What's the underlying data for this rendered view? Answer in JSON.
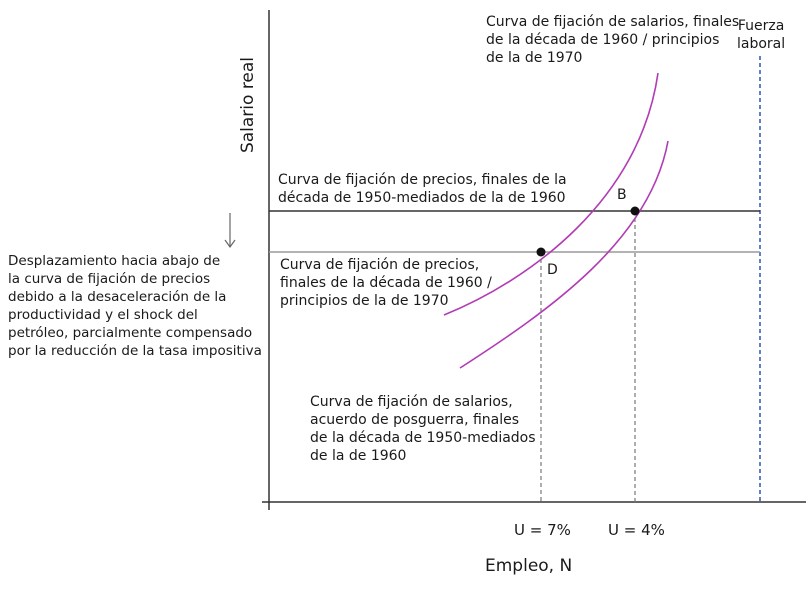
{
  "axes": {
    "y_title": "Salario real",
    "x_title": "Empleo, N"
  },
  "ticks": {
    "u7": "U = 7%",
    "u4": "U = 4%"
  },
  "labor_force": "Fuerza\nlaboral",
  "points": {
    "b": "B",
    "d": "D"
  },
  "labels": {
    "wage_curve_late60s": "Curva de fijación de salarios, finales\nde la década de 1960 / principios\nde la de 1970",
    "price_curve_50s60s": "Curva de fijación de precios, finales de la\ndécada de 1950-mediados de la de 1960",
    "price_curve_late60s": "Curva de fijación de precios,\nfinales de la década de 1960 /\nprincipios de la de 1970",
    "wage_curve_postwar": "Curva de fijación de salarios,\nacuerdo de posguerra, finales\nde la década de 1950-mediados\nde la de 1960",
    "shift_note": "Desplazamiento hacia abajo de\nla curva de fijación de precios\ndebido a la desaceleración de la\nproductividad y el shock del\npetróleo, parcialmente compensado\npor la reducción de la tasa impositiva"
  },
  "colors": {
    "axis": "#333333",
    "wage_curve": "#b23bb5",
    "price_curve_old": "#333333",
    "price_curve_new": "#9a9a9a",
    "labor_force": "#3b62b0",
    "dashed_guides": "#777777"
  }
}
